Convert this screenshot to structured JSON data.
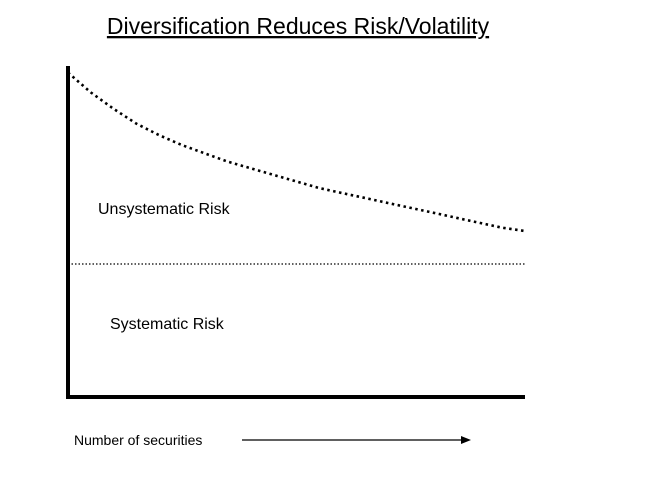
{
  "chart_data": {
    "type": "line",
    "title": "Diversification Reduces Risk/Volatility",
    "xlabel": "Number of securities",
    "ylabel": "",
    "annotations": [
      "Unsystematic Risk",
      "Systematic Risk"
    ],
    "xlim": [
      0,
      100
    ],
    "ylim": [
      0,
      100
    ],
    "grid": false,
    "series": [
      {
        "x": [
          0,
          5,
          10,
          15,
          20,
          25,
          30,
          35,
          40,
          45,
          50,
          55,
          60,
          65,
          70,
          75,
          80,
          85,
          90,
          95,
          100
        ],
        "values": [
          98,
          92,
          87,
          82.5,
          79,
          76,
          73.5,
          71,
          69,
          67,
          65,
          63,
          61.5,
          60,
          58.5,
          57,
          55.5,
          54,
          52.5,
          51,
          50
        ],
        "style": "dotted"
      },
      {
        "x": [
          0,
          100
        ],
        "values": [
          40,
          40
        ],
        "style": "dotted"
      }
    ]
  },
  "colors": {
    "line": "#000000",
    "background": "#ffffff"
  }
}
